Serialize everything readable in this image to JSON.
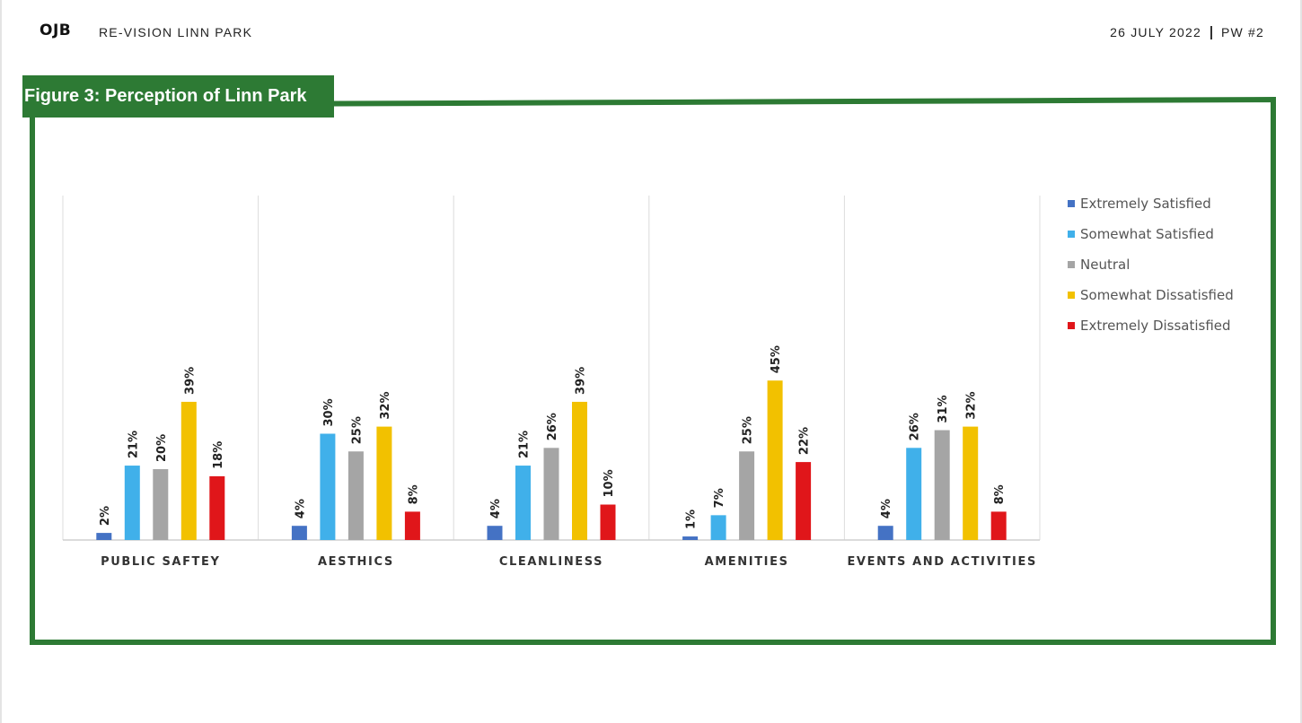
{
  "header": {
    "logo": "OJB",
    "project": "RE-VISION LINN PARK",
    "date": "26 JULY 2022",
    "page": "PW #2"
  },
  "figure": {
    "title": "Figure 3: Perception of Linn Park",
    "frame_color": "#2d7a34"
  },
  "chart_data": {
    "type": "bar",
    "categories": [
      "PUBLIC SAFTEY",
      "AESTHICS",
      "CLEANLINESS",
      "AMENITIES",
      "EVENTS AND ACTIVITIES"
    ],
    "series": [
      {
        "name": "Extremely Satisfied",
        "color": "#4472c4",
        "values": [
          2,
          4,
          4,
          1,
          4
        ]
      },
      {
        "name": "Somewhat Satisfied",
        "color": "#40b0ea",
        "values": [
          21,
          30,
          21,
          7,
          26
        ]
      },
      {
        "name": "Neutral",
        "color": "#a5a5a5",
        "values": [
          20,
          25,
          26,
          25,
          31
        ]
      },
      {
        "name": "Somewhat Dissatisfied",
        "color": "#f2c100",
        "values": [
          39,
          32,
          39,
          45,
          32
        ]
      },
      {
        "name": "Extremely Dissatisfied",
        "color": "#e0161a",
        "values": [
          18,
          8,
          10,
          22,
          8
        ]
      }
    ],
    "value_suffix": "%",
    "ylim": [
      0,
      100
    ],
    "grid": false,
    "legend_position": "right"
  }
}
